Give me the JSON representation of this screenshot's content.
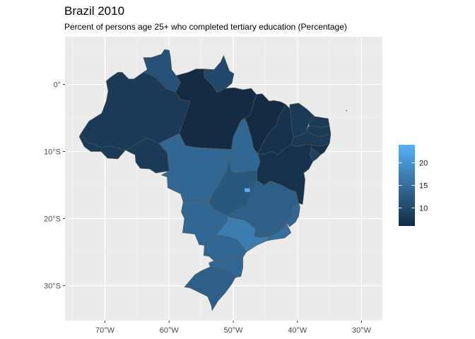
{
  "header": {
    "title": "Brazil 2010",
    "subtitle": "Percent of persons age 25+ who completed tertiary education (Percentage)"
  },
  "chart_data": {
    "type": "choropleth",
    "title": "Brazil 2010",
    "subtitle": "Percent of persons age 25+ who completed tertiary education (Percentage)",
    "x_ticks": [
      "70°W",
      "60°W",
      "50°W",
      "40°W",
      "30°W"
    ],
    "y_ticks": [
      "0°",
      "10°S",
      "20°S",
      "30°S"
    ],
    "xlim": [
      -76,
      -27
    ],
    "ylim": [
      -35.5,
      7.5
    ],
    "grid": true,
    "legend": {
      "position": "right",
      "labels": [
        "20",
        "15",
        "10"
      ],
      "range": [
        6,
        24
      ],
      "color_low": "#132B43",
      "color_high": "#56B1F7"
    },
    "regions": [
      {
        "name": "Amazonas",
        "value": 8
      },
      {
        "name": "Roraima",
        "value": 11
      },
      {
        "name": "Amapá",
        "value": 10
      },
      {
        "name": "Pará",
        "value": 6
      },
      {
        "name": "Acre",
        "value": 8
      },
      {
        "name": "Rondônia",
        "value": 8
      },
      {
        "name": "Mato Grosso",
        "value": 14
      },
      {
        "name": "Tocantins",
        "value": 14
      },
      {
        "name": "Maranhão",
        "value": 6
      },
      {
        "name": "Piauí",
        "value": 7
      },
      {
        "name": "Ceará",
        "value": 8
      },
      {
        "name": "Rio Grande do Norte",
        "value": 8
      },
      {
        "name": "Paraíba",
        "value": 8
      },
      {
        "name": "Pernambuco",
        "value": 8
      },
      {
        "name": "Alagoas",
        "value": 7
      },
      {
        "name": "Sergipe",
        "value": 9
      },
      {
        "name": "Bahia",
        "value": 7
      },
      {
        "name": "Minas Gerais",
        "value": 13
      },
      {
        "name": "Goiás",
        "value": 12
      },
      {
        "name": "Distrito Federal",
        "value": 24
      },
      {
        "name": "Mato Grosso do Sul",
        "value": 14
      },
      {
        "name": "Espírito Santo",
        "value": 14
      },
      {
        "name": "Rio de Janeiro",
        "value": 15
      },
      {
        "name": "São Paulo",
        "value": 17
      },
      {
        "name": "Paraná",
        "value": 14
      },
      {
        "name": "Santa Catarina",
        "value": 14
      },
      {
        "name": "Rio Grande do Sul",
        "value": 13
      }
    ]
  }
}
